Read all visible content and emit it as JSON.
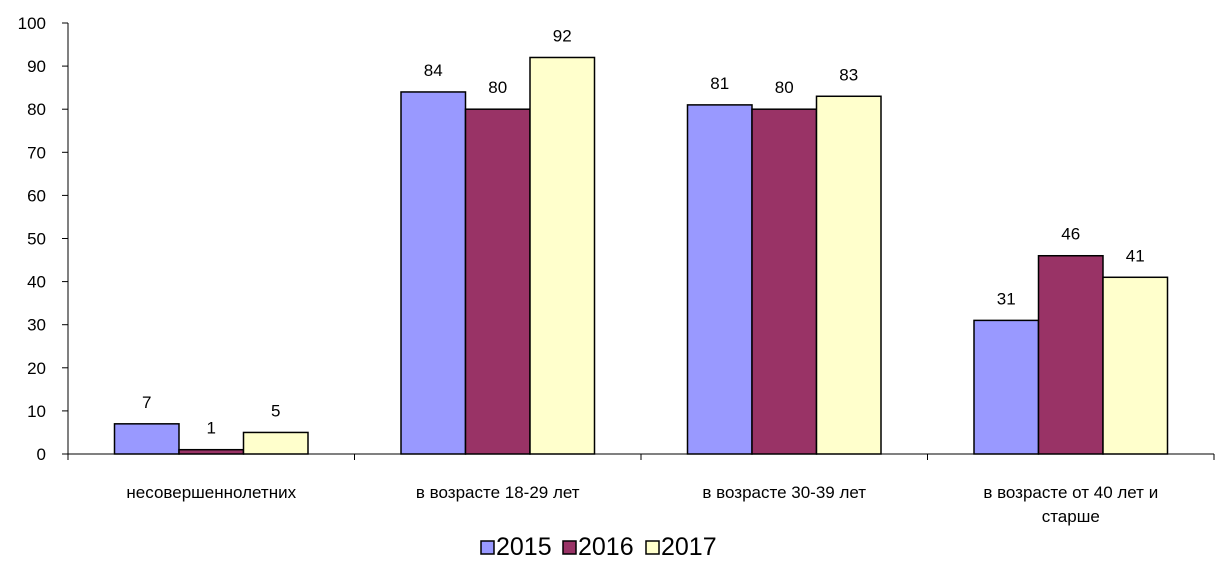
{
  "chart_data": {
    "type": "bar",
    "categories": [
      [
        "несовершеннолетних"
      ],
      [
        "в возрасте 18-29 лет"
      ],
      [
        "в возрасте 30-39 лет"
      ],
      [
        "в возрасте от 40 лет и",
        "старше"
      ]
    ],
    "series": [
      {
        "name": "2015",
        "values": [
          7,
          84,
          81,
          31
        ],
        "color": "#9999ff"
      },
      {
        "name": "2016",
        "values": [
          1,
          80,
          80,
          46
        ],
        "color": "#993366"
      },
      {
        "name": "2017",
        "values": [
          5,
          92,
          83,
          41
        ],
        "color": "#ffffcc"
      }
    ],
    "ylim": [
      0,
      100
    ],
    "yticks": [
      0,
      10,
      20,
      30,
      40,
      50,
      60,
      70,
      80,
      90,
      100
    ],
    "grid": false,
    "legend_position": "bottom",
    "title": "",
    "xlabel": "",
    "ylabel": ""
  }
}
